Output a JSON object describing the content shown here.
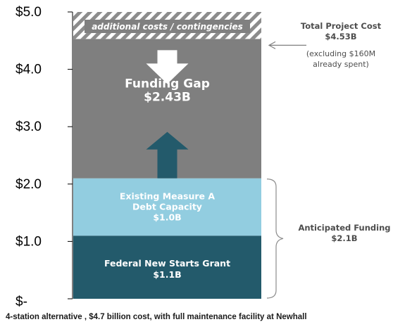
{
  "chart_data": {
    "type": "bar",
    "stacked": true,
    "ylim": [
      0,
      5.0
    ],
    "yticks": [
      0,
      1.0,
      2.0,
      3.0,
      4.0,
      5.0
    ],
    "ytick_labels": [
      "$-",
      "$1.0",
      "$2.0",
      "$3.0",
      "$4.0",
      "$5.0"
    ],
    "segments": [
      {
        "line1": "Federal New Starts Grant",
        "line2": "$1.1B",
        "value": 1.1,
        "start": 0.0,
        "color": "#235a6b",
        "text_color": "#ffffff"
      },
      {
        "line1": "Existing Measure A",
        "line2": "Debt Capacity",
        "line3": "$1.0B",
        "value": 1.0,
        "start": 1.1,
        "color": "#92cde0",
        "text_color": "#5b6b74"
      },
      {
        "line1": "Funding Gap",
        "line2": "$2.43B",
        "value": 2.43,
        "start": 2.1,
        "color": "#7f7f7f",
        "text_color": "#ffffff"
      }
    ],
    "contingency_band": {
      "label": "additional costs / contingencies",
      "start": 4.53,
      "end": 5.0
    },
    "annotations": {
      "total": {
        "title": "Total Project Cost",
        "value": "$4.53B",
        "note1": "(excluding $160M",
        "note2": "already spent)",
        "y": 4.53
      },
      "anticipated": {
        "title": "Anticipated Funding",
        "value": "$2.1B",
        "y_from": 0.0,
        "y_to": 2.1
      }
    },
    "arrows": {
      "down_color": "#ffffff",
      "up_color": "#235a6b"
    }
  },
  "caption": "4-station alternative , $4.7 billion cost, with full maintenance facility at Newhall"
}
